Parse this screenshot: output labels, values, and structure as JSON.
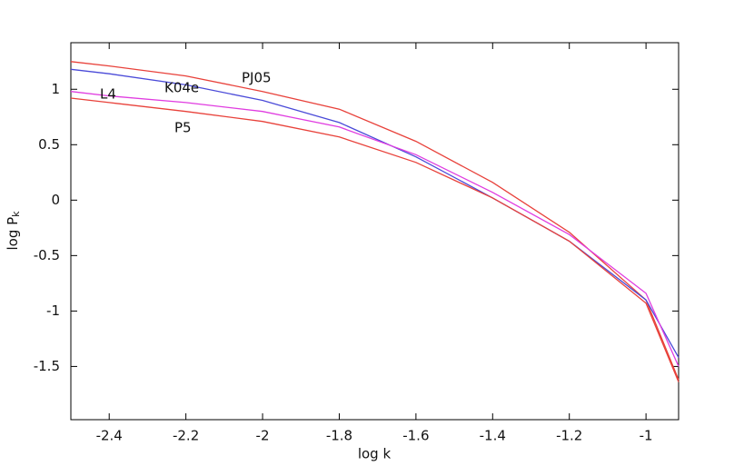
{
  "chart_data": {
    "type": "line",
    "xlabel": "log k",
    "ylabel": {
      "text": "log P",
      "subscript": "k"
    },
    "x": [
      -2.5,
      -2.4,
      -2.2,
      -2.0,
      -1.8,
      -1.6,
      -1.4,
      -1.2,
      -1.0,
      -0.915
    ],
    "series": [
      {
        "name": "PJ05",
        "color": "#e8413a",
        "values": [
          1.25,
          1.21,
          1.12,
          0.98,
          0.82,
          0.53,
          0.16,
          -0.29,
          -0.9,
          -1.62
        ]
      },
      {
        "name": "K04e",
        "color": "#4a4ad8",
        "values": [
          1.18,
          1.14,
          1.04,
          0.9,
          0.7,
          0.39,
          0.02,
          -0.37,
          -0.9,
          -1.42
        ]
      },
      {
        "name": "L4",
        "color": "#e03ce0",
        "values": [
          0.98,
          0.94,
          0.88,
          0.8,
          0.66,
          0.41,
          0.07,
          -0.31,
          -0.84,
          -1.5
        ]
      },
      {
        "name": "P5",
        "color": "#e8413a",
        "values": [
          0.92,
          0.88,
          0.8,
          0.71,
          0.57,
          0.34,
          0.02,
          -0.37,
          -0.93,
          -1.64
        ]
      }
    ],
    "xlim": [
      -2.5,
      -0.915
    ],
    "ylim": [
      -1.98,
      1.42
    ],
    "xticks": [
      -2.4,
      -2.2,
      -2,
      -1.8,
      -1.6,
      -1.4,
      -1.2,
      -1
    ],
    "yticks": [
      -1.5,
      -1,
      -0.5,
      0,
      0.5,
      1
    ]
  }
}
